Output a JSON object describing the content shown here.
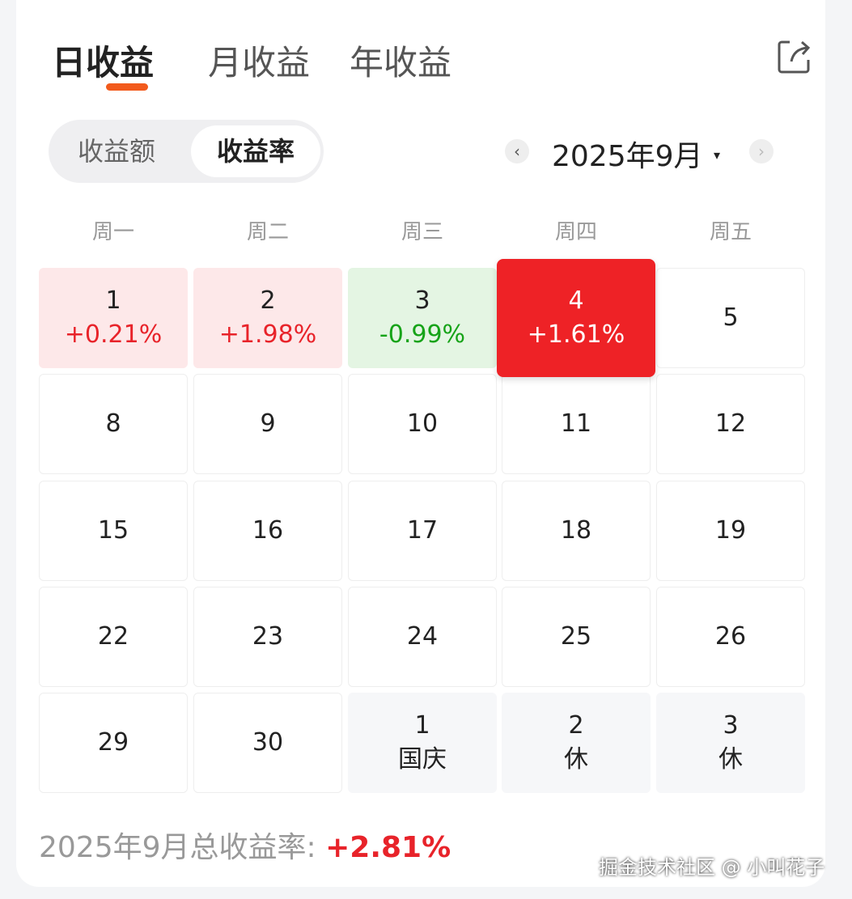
{
  "tabs": [
    {
      "label": "日收益",
      "active": true
    },
    {
      "label": "月收益"
    },
    {
      "label": "年收益"
    }
  ],
  "share_icon": "share-icon",
  "segment": {
    "options": [
      "收益额",
      "收益率"
    ],
    "selected": "收益率"
  },
  "month_picker": {
    "label": "2025年9月",
    "prev": "‹",
    "next": "›",
    "caret": "▾"
  },
  "weekdays": [
    "周一",
    "周二",
    "周三",
    "周四",
    "周五"
  ],
  "days": [
    {
      "day": "1",
      "rate": "+0.21%",
      "state": "up"
    },
    {
      "day": "2",
      "rate": "+1.98%",
      "state": "up"
    },
    {
      "day": "3",
      "rate": "-0.99%",
      "state": "down"
    },
    {
      "day": "4",
      "rate": "+1.61%",
      "state": "today"
    },
    {
      "day": "5"
    },
    {
      "day": "8"
    },
    {
      "day": "9"
    },
    {
      "day": "10"
    },
    {
      "day": "11"
    },
    {
      "day": "12"
    },
    {
      "day": "15"
    },
    {
      "day": "16"
    },
    {
      "day": "17"
    },
    {
      "day": "18"
    },
    {
      "day": "19"
    },
    {
      "day": "22"
    },
    {
      "day": "23"
    },
    {
      "day": "24"
    },
    {
      "day": "25"
    },
    {
      "day": "26"
    },
    {
      "day": "29"
    },
    {
      "day": "30"
    },
    {
      "day": "1",
      "rate": "国庆",
      "state": "next"
    },
    {
      "day": "2",
      "rate": "休",
      "state": "next"
    },
    {
      "day": "3",
      "rate": "休",
      "state": "next"
    }
  ],
  "summary": {
    "label": "2025年9月总收益率: ",
    "value": "+2.81%"
  },
  "colors": {
    "accent": "#f25a1c",
    "up": "#e8232a",
    "down": "#16a318",
    "today_bg": "#ee2226"
  },
  "watermark": "掘金技术社区 @ 小叫花子"
}
